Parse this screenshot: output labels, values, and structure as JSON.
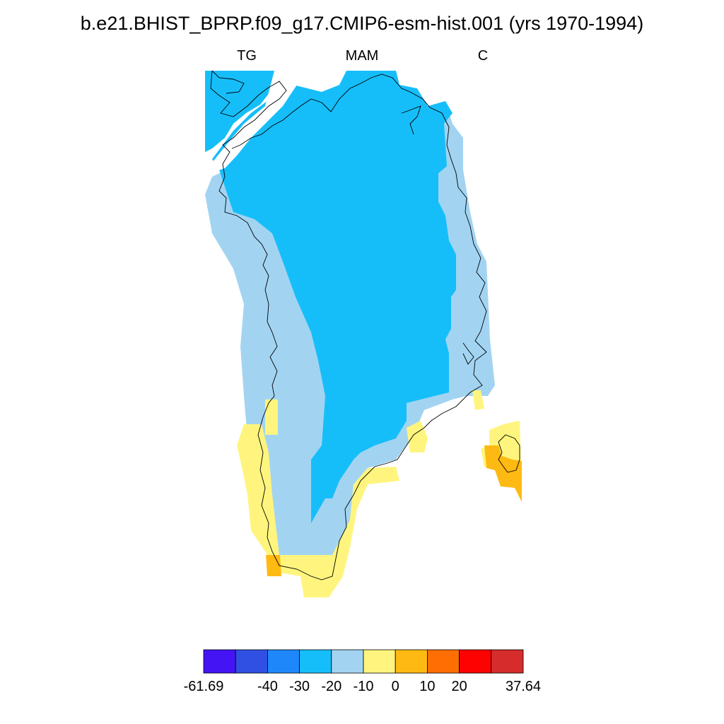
{
  "title": "b.e21.BHIST_BPRP.f09_g17.CMIP6-esm-hist.001 (yrs 1970-1994)",
  "subtitle_left": "TG",
  "subtitle_center": "MAM",
  "subtitle_right": "C",
  "colorbar": {
    "colors": [
      "#4414f5",
      "#3050e3",
      "#1e88fa",
      "#16bef9",
      "#a2d4f2",
      "#fff57e",
      "#feba12",
      "#ff6e03",
      "#fe0201",
      "#d62c2c"
    ],
    "labels": [
      "-61.69",
      "-40",
      "-30",
      "-20",
      "-10",
      "0",
      "10",
      "20",
      "37.64"
    ]
  },
  "map_colors": {
    "deep": "#16bef9",
    "light": "#a2d4f2",
    "yellow": "#fff57e",
    "orange": "#feba12"
  }
}
